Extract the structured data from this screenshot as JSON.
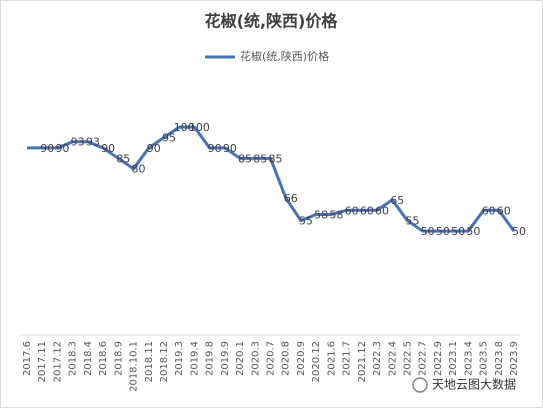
{
  "chart_data": {
    "type": "line",
    "title": "花椒(统,陕西)价格",
    "categories": [
      "2017.6",
      "2017.11",
      "2017.12",
      "2018.3",
      "2018.4",
      "2018.6",
      "2018.9",
      "2018.10.1",
      "2018.11",
      "2018.12",
      "2019.3",
      "2019.4",
      "2019.8",
      "2019.9",
      "2020.1",
      "2020.3",
      "2020.7",
      "2020.8",
      "2020.9",
      "2020.12",
      "2021.6",
      "2021.7",
      "2021.12",
      "2022.3",
      "2022.4",
      "2022.5",
      "2022.7",
      "2022.9",
      "2023.1",
      "2023.4",
      "2023.5",
      "2023.8",
      "2023.9"
    ],
    "series": [
      {
        "name": "花椒(统,陕西)价格",
        "color": "#4472c4",
        "values": [
          90,
          90,
          90,
          93,
          93,
          90,
          85,
          80,
          90,
          95,
          100,
          100,
          90,
          90,
          85,
          85,
          85,
          66,
          55,
          58,
          58,
          60,
          60,
          60,
          65,
          55,
          50,
          50,
          50,
          50,
          60,
          60,
          50
        ],
        "value_labels": [
          null,
          "90",
          "90",
          "93",
          "93",
          "90",
          "85",
          "80",
          "90",
          "95",
          "100",
          "100",
          "90",
          "90",
          "85",
          "85",
          "85",
          "66",
          "55",
          "58",
          "58",
          "60",
          "60",
          "60",
          "65",
          "55",
          "50",
          "50",
          "50",
          "50",
          "60",
          "60",
          "50"
        ]
      }
    ],
    "ylim": [
      0,
      140
    ],
    "legend": "top",
    "watermark": "天地云图大数据"
  }
}
